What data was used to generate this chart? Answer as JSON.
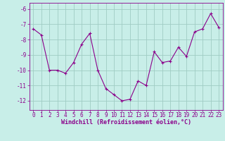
{
  "x": [
    0,
    1,
    2,
    3,
    4,
    5,
    6,
    7,
    8,
    9,
    10,
    11,
    12,
    13,
    14,
    15,
    16,
    17,
    18,
    19,
    20,
    21,
    22,
    23
  ],
  "y": [
    -7.3,
    -7.7,
    -10.0,
    -10.0,
    -10.2,
    -9.5,
    -8.3,
    -7.6,
    -10.0,
    -11.2,
    -11.6,
    -12.0,
    -11.9,
    -10.7,
    -11.0,
    -8.8,
    -9.5,
    -9.4,
    -8.5,
    -9.1,
    -7.5,
    -7.3,
    -6.3,
    -7.2
  ],
  "line_color": "#8b008b",
  "marker": "+",
  "bg_color": "#c8eee8",
  "grid_color": "#a0ccc4",
  "xlabel": "Windchill (Refroidissement éolien,°C)",
  "ylim": [
    -12.6,
    -5.6
  ],
  "xlim": [
    -0.5,
    23.5
  ],
  "yticks": [
    -12,
    -11,
    -10,
    -9,
    -8,
    -7,
    -6
  ],
  "xticks": [
    0,
    1,
    2,
    3,
    4,
    5,
    6,
    7,
    8,
    9,
    10,
    11,
    12,
    13,
    14,
    15,
    16,
    17,
    18,
    19,
    20,
    21,
    22,
    23
  ],
  "label_fontsize": 6,
  "tick_fontsize": 5.5
}
